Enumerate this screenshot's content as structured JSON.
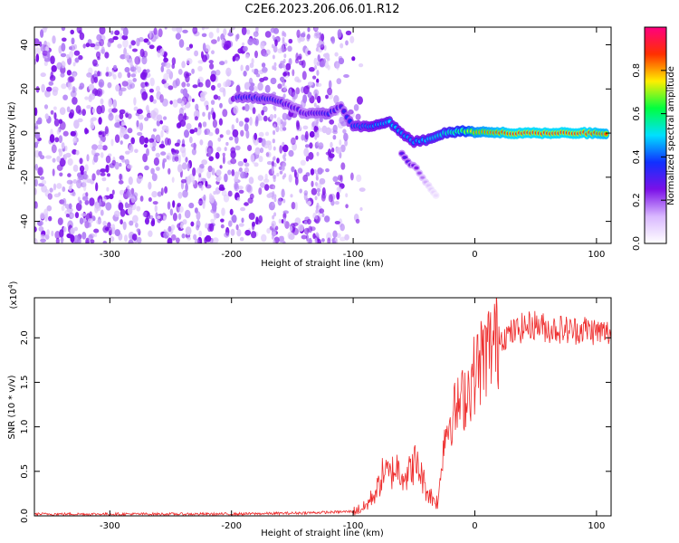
{
  "title": "C2E6.2023.206.06.01.R12",
  "colors": {
    "snr_line": "#ee2b2b",
    "spectrogram_noise": "#7b10e8",
    "colormap": [
      "#ffffff",
      "#d9b8ff",
      "#7b10e8",
      "#1030ff",
      "#00e0ff",
      "#00ff40",
      "#ffee00",
      "#ff3000",
      "#ff0080"
    ]
  },
  "chart_data": [
    {
      "type": "heatmap",
      "title": "",
      "xlabel": "Height of straight line (km)",
      "ylabel": "Frequency (Hz)",
      "xlim": [
        -362,
        112
      ],
      "ylim": [
        -50,
        48
      ],
      "xticks": [
        "-300",
        "-200",
        "-100",
        "0",
        "100"
      ],
      "xtick_values": [
        -300,
        -200,
        -100,
        0,
        100
      ],
      "yticks": [
        "-40",
        "-20",
        "0",
        "20",
        "40"
      ],
      "ytick_values": [
        -40,
        -20,
        0,
        20,
        40
      ],
      "colorbar": {
        "label": "Normalized spectral amplitude",
        "range": [
          0.0,
          1.0
        ],
        "ticks": [
          "0.0",
          "0.2",
          "0.4",
          "0.6",
          "0.8"
        ],
        "tick_values": [
          0.0,
          0.2,
          0.4,
          0.6,
          0.8
        ]
      },
      "noise_region": {
        "x_range": [
          -362,
          -120
        ],
        "freq_range": [
          -50,
          48
        ],
        "amplitude": 0.15
      },
      "signal_track": [
        {
          "x": -195,
          "freq": 16,
          "amplitude": 0.35
        },
        {
          "x": -180,
          "freq": 16,
          "amplitude": 0.35
        },
        {
          "x": -165,
          "freq": 15,
          "amplitude": 0.35
        },
        {
          "x": -150,
          "freq": 12,
          "amplitude": 0.3
        },
        {
          "x": -140,
          "freq": 9,
          "amplitude": 0.3
        },
        {
          "x": -120,
          "freq": 9,
          "amplitude": 0.35
        },
        {
          "x": -110,
          "freq": 12,
          "amplitude": 0.3
        },
        {
          "x": -100,
          "freq": 3,
          "amplitude": 0.4
        },
        {
          "x": -85,
          "freq": 3,
          "amplitude": 0.45
        },
        {
          "x": -70,
          "freq": 5,
          "amplitude": 0.5
        },
        {
          "x": -60,
          "freq": 0,
          "amplitude": 0.45
        },
        {
          "x": -50,
          "freq": -4,
          "amplitude": 0.45
        },
        {
          "x": -40,
          "freq": -3,
          "amplitude": 0.5
        },
        {
          "x": -25,
          "freq": 0,
          "amplitude": 0.55
        },
        {
          "x": -10,
          "freq": 1,
          "amplitude": 0.65
        },
        {
          "x": 0,
          "freq": 0.5,
          "amplitude": 0.8
        },
        {
          "x": 30,
          "freq": 0,
          "amplitude": 0.9
        },
        {
          "x": 60,
          "freq": 0,
          "amplitude": 0.9
        },
        {
          "x": 90,
          "freq": 0,
          "amplitude": 0.9
        },
        {
          "x": 110,
          "freq": 0,
          "amplitude": 0.85
        }
      ],
      "branch_track": [
        {
          "x": -60,
          "freq": -9,
          "amplitude": 0.3
        },
        {
          "x": -55,
          "freq": -13,
          "amplitude": 0.3
        },
        {
          "x": -48,
          "freq": -16,
          "amplitude": 0.25
        },
        {
          "x": -38,
          "freq": -24,
          "amplitude": 0.1
        },
        {
          "x": -30,
          "freq": -30,
          "amplitude": 0.05
        }
      ]
    },
    {
      "type": "line",
      "title": "",
      "xlabel": "Height of straight line (km)",
      "ylabel": "SNR (10 * v/v)",
      "y_multiplier": "(x10",
      "y_multiplier_exp": "4",
      "y_multiplier_close": ")",
      "xlim": [
        -362,
        112
      ],
      "ylim": [
        0,
        2.45
      ],
      "xticks": [
        "-300",
        "-200",
        "-100",
        "0",
        "100"
      ],
      "xtick_values": [
        -300,
        -200,
        -100,
        0,
        100
      ],
      "yticks": [
        "0.0",
        "0.5",
        "1.0",
        "1.5",
        "2.0"
      ],
      "ytick_values": [
        0.0,
        0.5,
        1.0,
        1.5,
        2.0
      ],
      "series": [
        {
          "x": [
            -362,
            -300,
            -250,
            -200,
            -150,
            -120,
            -100,
            -90,
            -80,
            -75,
            -70,
            -65,
            -60,
            -55,
            -50,
            -45,
            -40,
            -35,
            -30,
            -28,
            -25,
            -20,
            -15,
            -10,
            -5,
            0,
            5,
            10,
            15,
            20,
            30,
            40,
            50,
            60,
            70,
            80,
            90,
            100,
            112
          ],
          "values": [
            0.02,
            0.02,
            0.02,
            0.02,
            0.03,
            0.04,
            0.05,
            0.1,
            0.3,
            0.5,
            0.45,
            0.55,
            0.5,
            0.45,
            0.6,
            0.5,
            0.3,
            0.2,
            0.15,
            0.5,
            0.9,
            1.1,
            1.2,
            1.3,
            1.45,
            1.6,
            1.75,
            1.85,
            1.95,
            2.0,
            2.05,
            2.12,
            2.15,
            2.1,
            2.1,
            2.08,
            2.1,
            2.07,
            2.05
          ]
        }
      ]
    }
  ]
}
